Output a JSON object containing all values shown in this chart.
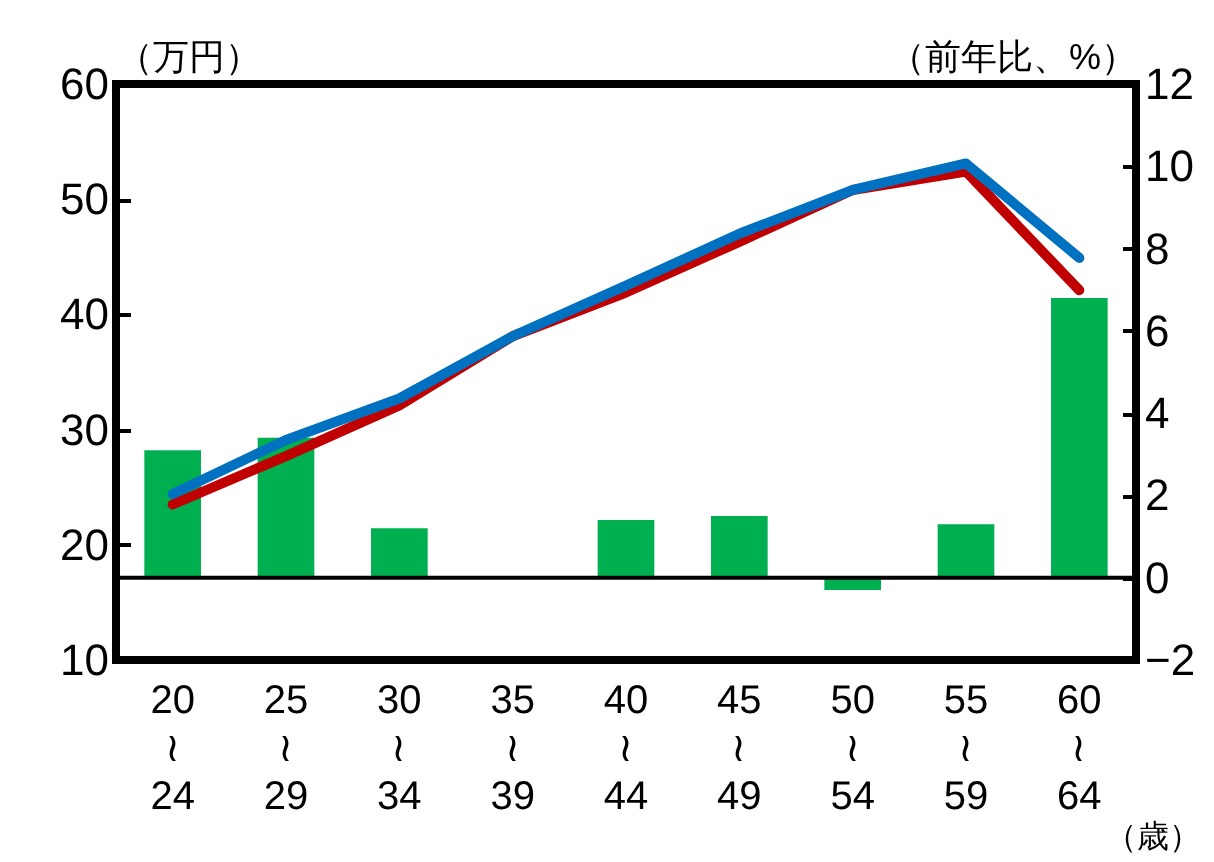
{
  "chart_data": {
    "type": "bar",
    "categories": [
      "20\n≀\n24",
      "25\n≀\n29",
      "30\n≀\n34",
      "35\n≀\n39",
      "40\n≀\n44",
      "45\n≀\n49",
      "50\n≀\n54",
      "55\n≀\n59",
      "60\n≀\n64"
    ],
    "series": [
      {
        "axis": "y2",
        "color": "#00b050",
        "values": [
          3.1,
          3.4,
          1.2,
          0,
          1.4,
          1.5,
          -0.3,
          1.3,
          6.8
        ]
      },
      {
        "type": "line",
        "color": "#c00000",
        "values": [
          23.5,
          27.7,
          32.1,
          38.1,
          41.9,
          46.3,
          50.8,
          52.4,
          42.1
        ]
      },
      {
        "type": "line",
        "color": "#0070c0",
        "values": [
          24.4,
          29.1,
          32.7,
          38.1,
          42.5,
          47.0,
          50.8,
          53.1,
          44.9
        ]
      }
    ],
    "xlabel": "（歳）",
    "ylabel": "（万円）",
    "y2label": "（前年比、%）",
    "ylim": [
      10,
      60
    ],
    "yticks": [
      10,
      20,
      30,
      40,
      50,
      60
    ],
    "y2lim": [
      -2,
      12
    ],
    "y2ticks": [
      -2,
      0,
      2,
      4,
      6,
      8,
      10,
      12
    ],
    "ref_lines": [
      {
        "axis": "y2",
        "value": 0,
        "color": "#000000"
      }
    ],
    "grid": false,
    "legend": false,
    "marker": "none",
    "line_style": "solid"
  }
}
